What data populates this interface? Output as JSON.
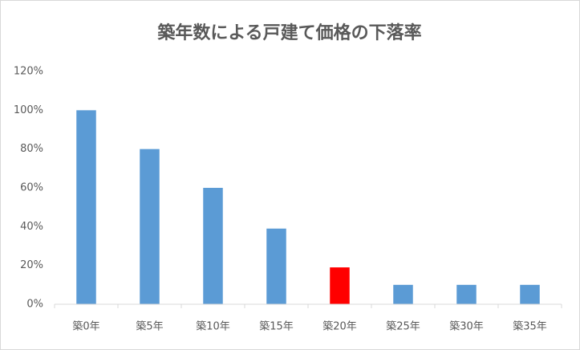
{
  "chart_data": {
    "type": "bar",
    "title": "築年数による戸建て価格の下落率",
    "categories": [
      "築0年",
      "築5年",
      "築10年",
      "築15年",
      "築20年",
      "築25年",
      "築30年",
      "築35年"
    ],
    "values": [
      100,
      80,
      60,
      39,
      19,
      10,
      10,
      10
    ],
    "colors": [
      "#5b9bd5",
      "#5b9bd5",
      "#5b9bd5",
      "#5b9bd5",
      "#ff0000",
      "#5b9bd5",
      "#5b9bd5",
      "#5b9bd5"
    ],
    "ylim": [
      0,
      120
    ],
    "yticks": [
      {
        "value": 0,
        "label": "0%"
      },
      {
        "value": 20,
        "label": "20%"
      },
      {
        "value": 40,
        "label": "40%"
      },
      {
        "value": 60,
        "label": "60%"
      },
      {
        "value": 80,
        "label": "80%"
      },
      {
        "value": 100,
        "label": "100%"
      },
      {
        "value": 120,
        "label": "120%"
      }
    ],
    "grid": false
  }
}
